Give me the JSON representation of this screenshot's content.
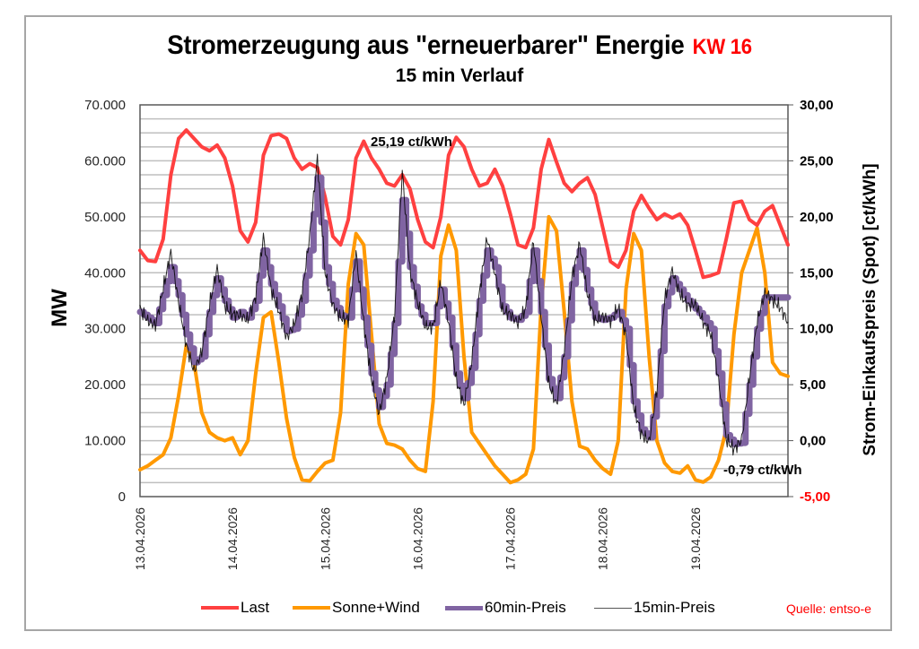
{
  "chart_data": {
    "type": "line",
    "title": "Stromerzeugung aus \"erneuerbarer\" Energie",
    "title_badge": "KW 16",
    "subtitle": "15 min Verlauf",
    "ylabel": "MW",
    "y2label": "Strom-Einkaufspreis (Spot)  [ct/kWh]",
    "ylim": [
      0,
      70000
    ],
    "y2lim": [
      -5,
      30
    ],
    "yticks": [
      "0",
      "10.000",
      "20.000",
      "30.000",
      "40.000",
      "50.000",
      "60.000",
      "70.000"
    ],
    "y2ticks": [
      "-5,00",
      "0,00",
      "5,00",
      "10,00",
      "15,00",
      "20,00",
      "25,00",
      "30,00"
    ],
    "y2tick_negative_color": "#ff0000",
    "grid": true,
    "x_unit": "hours since 13.04.2026 00:00",
    "x_step_hours": 2,
    "xticks": [
      "13.04.2026",
      "14.04.2026",
      "15.04.2026",
      "16.04.2026",
      "17.04.2026",
      "18.04.2026",
      "19.04.2026"
    ],
    "annotations": [
      {
        "text": "25,19 ct/kWh",
        "label": "max price"
      },
      {
        "text": "-0,79 ct/kWh",
        "label": "min price"
      }
    ],
    "series": [
      {
        "name": "Last",
        "axis": "left",
        "color": "#ff4040",
        "values": [
          44000,
          42200,
          42000,
          46000,
          57500,
          64000,
          65500,
          64000,
          62500,
          61800,
          62800,
          60500,
          55500,
          47500,
          45500,
          49000,
          61000,
          64500,
          64800,
          64000,
          60500,
          58500,
          59500,
          58800,
          53500,
          46500,
          45000,
          49500,
          60500,
          63500,
          60500,
          58500,
          56000,
          55500,
          57500,
          55000,
          49500,
          45500,
          44500,
          50000,
          61000,
          64200,
          62500,
          58500,
          55500,
          56000,
          58500,
          55500,
          50500,
          45000,
          44500,
          48000,
          58500,
          63800,
          59800,
          56000,
          54500,
          56000,
          57000,
          54000,
          48000,
          42000,
          41000,
          44000,
          51000,
          53800,
          51500,
          49500,
          50500,
          49800,
          50500,
          48500,
          44000,
          39200,
          39500,
          40000,
          46000,
          52500,
          52800,
          49500,
          48500,
          51000,
          52000,
          48500,
          45000
        ]
      },
      {
        "name": "Sonne+Wind",
        "axis": "left",
        "color": "#ff9900",
        "values": [
          4800,
          5500,
          6500,
          7500,
          10500,
          18000,
          27000,
          24000,
          15000,
          11500,
          10500,
          10000,
          10500,
          7500,
          10000,
          22000,
          32000,
          33000,
          24000,
          14000,
          7000,
          3000,
          2800,
          4500,
          6000,
          6500,
          15000,
          38000,
          47000,
          45000,
          29000,
          13000,
          9500,
          9200,
          8500,
          6500,
          5000,
          4500,
          17000,
          43000,
          48500,
          44000,
          25000,
          11500,
          9500,
          7500,
          5500,
          4000,
          2500,
          3000,
          4000,
          8500,
          34000,
          50000,
          47500,
          33000,
          17000,
          9000,
          8500,
          6500,
          5000,
          4000,
          10000,
          37000,
          47000,
          44000,
          25000,
          10000,
          6000,
          4500,
          4200,
          5500,
          3000,
          2600,
          3500,
          6500,
          12000,
          29000,
          40000,
          44000,
          48000,
          40000,
          24000,
          22000,
          21500
        ]
      },
      {
        "name": "60min-Preis",
        "axis": "right",
        "color": "#8064a2",
        "values": [
          11.5,
          11.0,
          10.5,
          13.0,
          15.5,
          13.0,
          9.5,
          7.0,
          7.5,
          11.5,
          14.5,
          12.5,
          11.0,
          11.5,
          11.0,
          12.5,
          17.0,
          14.0,
          12.0,
          9.8,
          10.0,
          12.5,
          17.0,
          23.5,
          15.5,
          12.5,
          11.2,
          11.0,
          16.0,
          11.0,
          6.0,
          3.0,
          5.0,
          10.5,
          21.5,
          15.5,
          12.0,
          10.5,
          10.5,
          13.5,
          11.0,
          6.0,
          3.8,
          6.5,
          12.5,
          17.0,
          15.5,
          12.0,
          11.0,
          10.8,
          11.5,
          17.0,
          11.5,
          5.5,
          3.8,
          7.5,
          14.0,
          17.0,
          13.5,
          11.0,
          10.8,
          11.0,
          11.5,
          10.0,
          3.5,
          1.0,
          0.3,
          4.0,
          12.0,
          14.5,
          13.5,
          12.5,
          11.8,
          11.0,
          10.0,
          6.0,
          0.5,
          -0.3,
          -0.2,
          5.0,
          10.0,
          12.8,
          12.8,
          12.8,
          12.8
        ]
      },
      {
        "name": "15min-Preis",
        "axis": "right",
        "color": "#000000",
        "values": [
          11.8,
          10.7,
          10.3,
          13.6,
          16.8,
          12.4,
          8.6,
          6.2,
          7.9,
          12.1,
          15.4,
          12.0,
          11.3,
          11.2,
          10.8,
          12.9,
          18.2,
          13.5,
          11.6,
          9.2,
          10.4,
          13.1,
          18.3,
          25.19,
          15.0,
          12.1,
          11.0,
          10.8,
          16.8,
          10.5,
          5.5,
          2.4,
          5.6,
          11.2,
          24.1,
          15.1,
          12.3,
          10.2,
          10.2,
          14.2,
          10.6,
          5.4,
          3.2,
          7.1,
          13.2,
          18.1,
          15.0,
          11.6,
          11.3,
          10.5,
          11.8,
          17.8,
          11.0,
          5.1,
          3.2,
          8.1,
          14.6,
          17.6,
          13.1,
          10.7,
          11.1,
          10.7,
          11.9,
          9.4,
          3.0,
          0.6,
          -0.1,
          4.5,
          12.6,
          15.2,
          13.1,
          12.1,
          12.2,
          10.6,
          9.5,
          5.4,
          0.1,
          -0.79,
          0.1,
          5.6,
          10.6,
          13.2,
          12.6,
          11.9,
          10.6
        ]
      }
    ]
  },
  "legend": {
    "items": [
      {
        "label": "Last",
        "color": "#ff4040"
      },
      {
        "label": "Sonne+Wind",
        "color": "#ff9900"
      },
      {
        "label": "60min-Preis",
        "color": "#8064a2"
      },
      {
        "label": "15min-Preis",
        "color": "#000000"
      }
    ]
  },
  "source": "Quelle: entso-e"
}
